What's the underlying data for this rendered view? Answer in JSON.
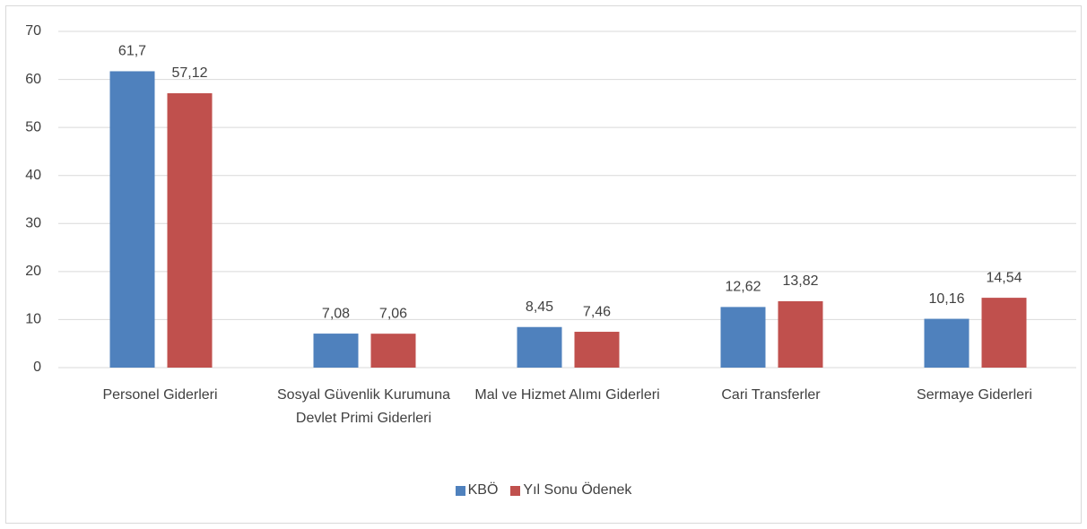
{
  "chart_data": {
    "type": "bar",
    "categories": [
      "Personel Giderleri",
      "Sosyal Güvenlik Kurumuna Devlet Primi Giderleri",
      "Mal ve Hizmet Alımı Giderleri",
      "Cari Transferler",
      "Sermaye Giderleri"
    ],
    "series": [
      {
        "name": "KBÖ",
        "color": "#4f81bd",
        "values": [
          61.7,
          7.08,
          8.45,
          12.62,
          10.16
        ],
        "value_labels": [
          "61,7",
          "7,08",
          "8,45",
          "12,62",
          "10,16"
        ]
      },
      {
        "name": "Yıl Sonu Ödenek",
        "color": "#c0504d",
        "values": [
          57.12,
          7.06,
          7.46,
          13.82,
          14.54
        ],
        "value_labels": [
          "57,12",
          "7,06",
          "7,46",
          "13,82",
          "14,54"
        ]
      }
    ],
    "ylim": [
      0,
      70
    ],
    "yticks": [
      0,
      10,
      20,
      30,
      40,
      50,
      60,
      70
    ],
    "grid": true,
    "legend": "bottom"
  }
}
